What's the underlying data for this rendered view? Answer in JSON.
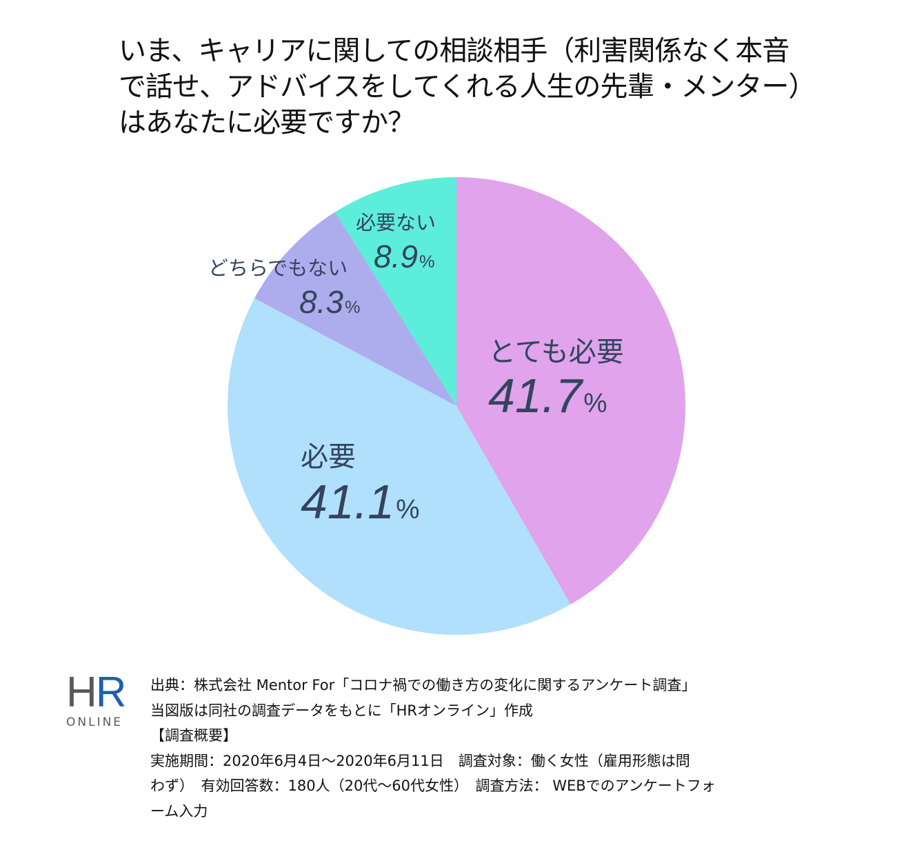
{
  "title": {
    "lines": [
      "いま、キャリアに関しての相談相手（利害関係なく本音",
      "で話せ、アドバイスをしてくれる人生の先輩・メンター）",
      "はあなたに必要ですか？"
    ]
  },
  "chart_data": {
    "type": "pie",
    "title": "いま、キャリアに関しての相談相手（利害関係なく本音で話せ、アドバイスをしてくれる人生の先輩・メンター）はあなたに必要ですか？",
    "start_angle": "12 o'clock, clockwise",
    "categories": [
      "とても必要",
      "必要",
      "どちらでもない",
      "必要ない"
    ],
    "values": [
      41.7,
      41.1,
      8.3,
      8.9
    ],
    "unit": "%",
    "colors": [
      "#e0a3ec",
      "#b0e0fb",
      "#adaded",
      "#5ceedb"
    ],
    "legend": "none (labels inside slices)"
  },
  "labels": {
    "totemo": {
      "category": "とても必要",
      "value": "41.7",
      "unit": "%"
    },
    "hitsuyo": {
      "category": "必要",
      "value": "41.1",
      "unit": "%"
    },
    "dochira": {
      "category": "どちらでもない",
      "value": "8.3",
      "unit": "%"
    },
    "fuyo": {
      "category": "必要ない",
      "value": "8.9",
      "unit": "%"
    }
  },
  "logo": {
    "h": "H",
    "r": "R",
    "sub": "ONLINE"
  },
  "source": {
    "lines": [
      "出典：株式会社 Mentor For「コロナ禍での働き方の変化に関するアンケート調査」",
      "当図版は同社の調査データをもとに「HRオンライン」作成",
      "【調査概要】",
      "実施期間：2020年6月4日～2020年6月11日　調査対象：働く女性（雇用形態は問",
      "わず）　有効回答数：180人（20代～60代女性）　調査方法： WEBでのアンケートフォ",
      "ーム入力"
    ]
  },
  "colors": {
    "label_text": "#34445e",
    "logo_gray": "#58595b",
    "logo_blue": "#1f5fae"
  }
}
